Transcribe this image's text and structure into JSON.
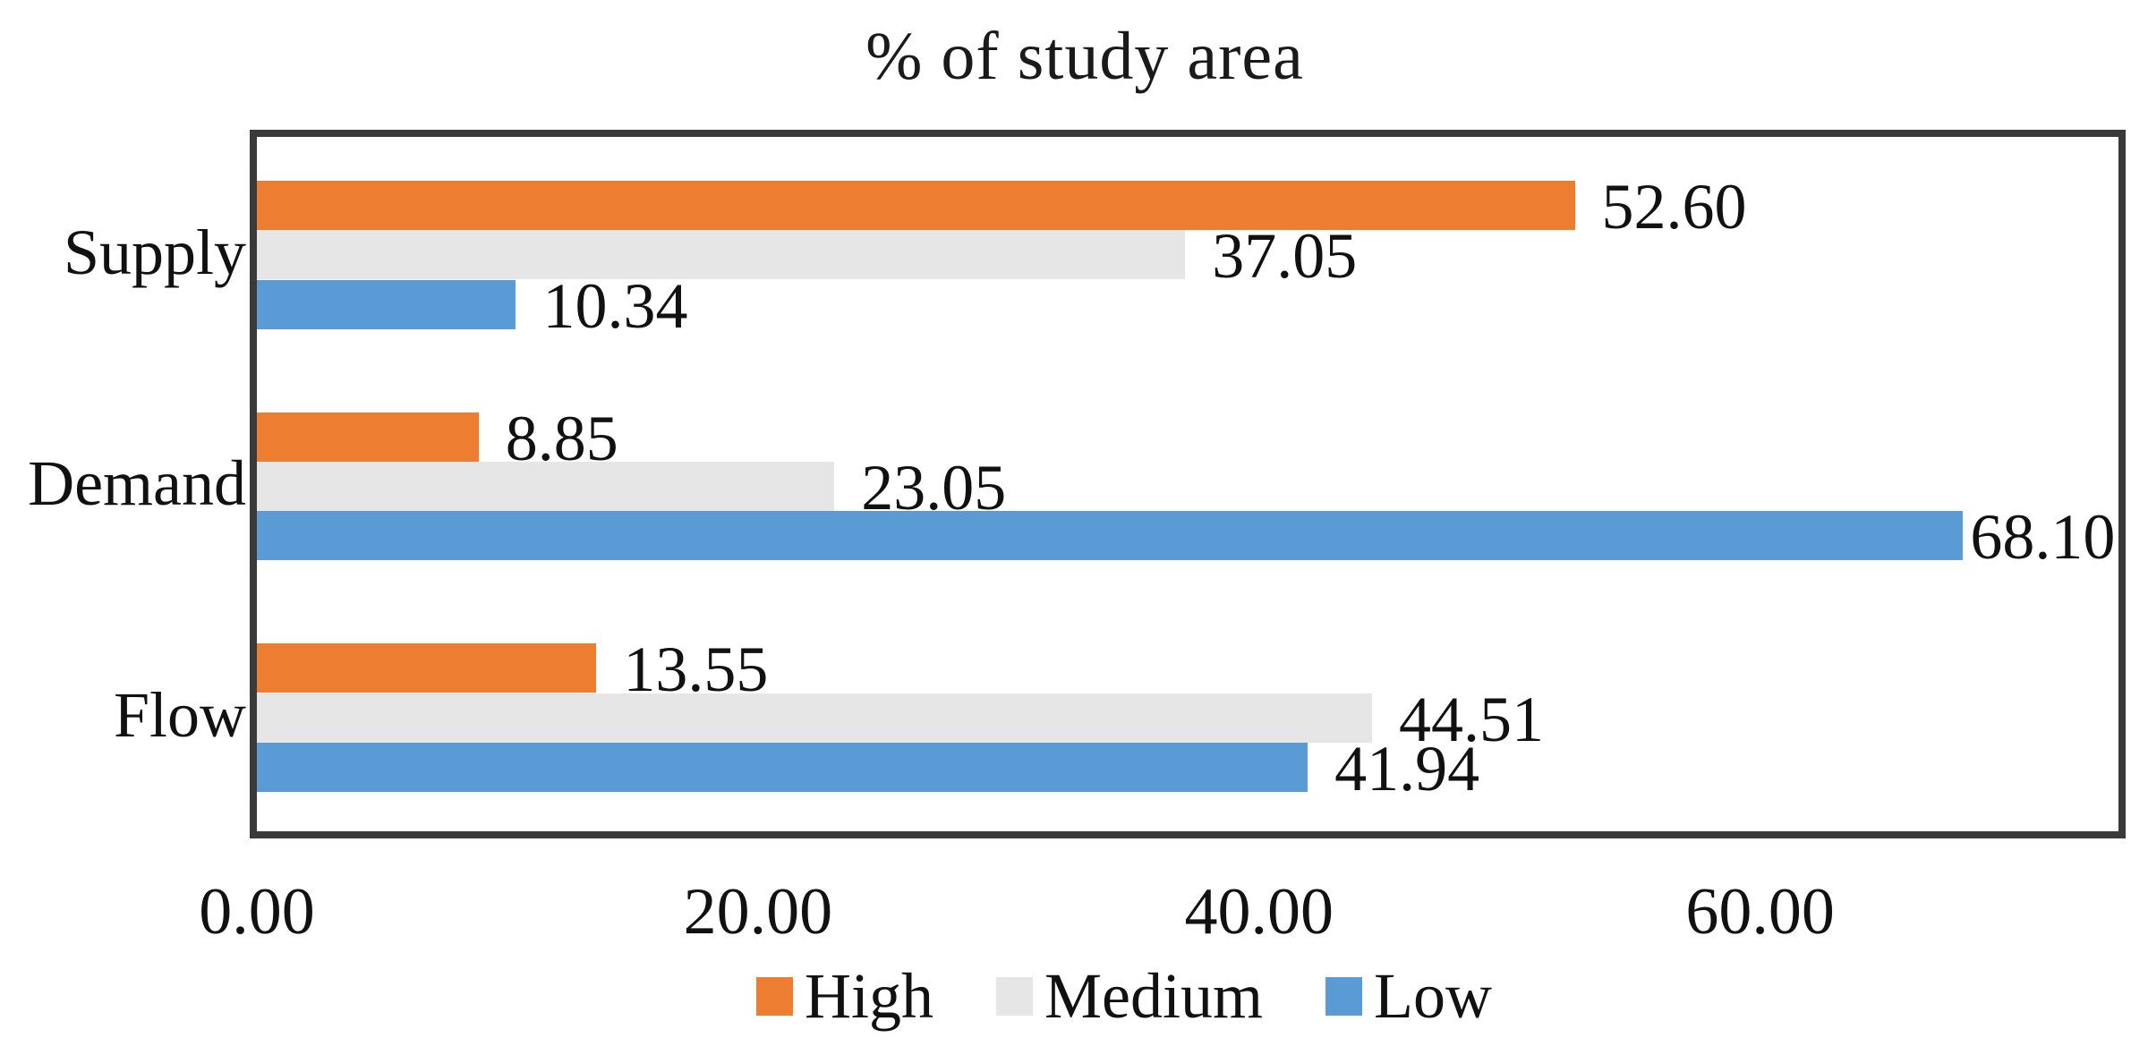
{
  "chart_data": {
    "type": "bar",
    "orientation": "horizontal",
    "title": "% of study area",
    "categories": [
      "Supply",
      "Demand",
      "Flow"
    ],
    "series": [
      {
        "name": "High",
        "color": "#ED7D31",
        "values": [
          52.6,
          8.85,
          13.55
        ]
      },
      {
        "name": "Medium",
        "color": "#E6E6E6",
        "values": [
          37.05,
          23.05,
          44.51
        ]
      },
      {
        "name": "Low",
        "color": "#5B9BD5",
        "values": [
          10.34,
          68.1,
          41.94
        ]
      }
    ],
    "value_label_decimals": 2,
    "x_ticks": [
      {
        "value": 0,
        "label": "0.00"
      },
      {
        "value": 20,
        "label": "20.00"
      },
      {
        "value": 40,
        "label": "40.00"
      },
      {
        "value": 60,
        "label": "60.00"
      }
    ],
    "xlim": [
      0,
      74.3
    ],
    "grid": false,
    "legend": {
      "position": "bottom",
      "entries": [
        "High",
        "Medium",
        "Low"
      ]
    }
  },
  "colors": {
    "frame": "#3a3a3a",
    "text": "#111111",
    "background": "#ffffff"
  }
}
